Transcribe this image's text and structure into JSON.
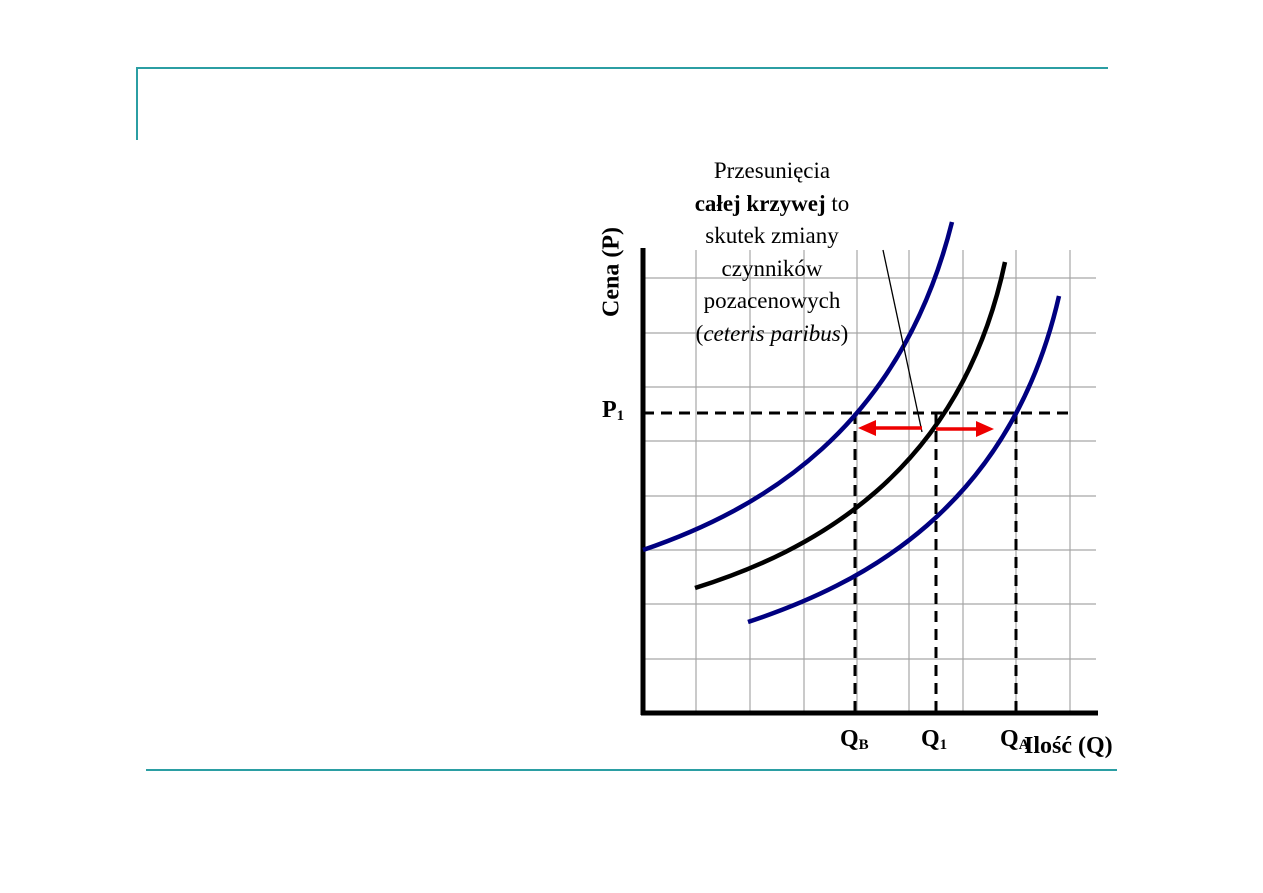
{
  "annotation": {
    "line1": "Przesunięcia",
    "line2_bold": "całej krzywej",
    "line2_rest": " to",
    "line3": "skutek zmiany",
    "line4": "czynników",
    "line5": "pozacenowych",
    "line6_open": "(",
    "line6_italic": "ceteris paribus",
    "line6_close": ")"
  },
  "axes": {
    "y_label": "Cena (P)",
    "x_label": "Ilość (Q)"
  },
  "labels": {
    "p1_main": "P",
    "p1_sub": "1",
    "qb_main": "Q",
    "qb_sub": "B",
    "q1_main": "Q",
    "q1_sub": "1",
    "qa_main": "Q",
    "qa_sub": "A"
  },
  "colors": {
    "frame": "#2b9ea3",
    "curve_shifted": "#000080",
    "curve_original": "#000000",
    "arrow": "#ee0000",
    "grid": "#a6a6a6"
  }
}
